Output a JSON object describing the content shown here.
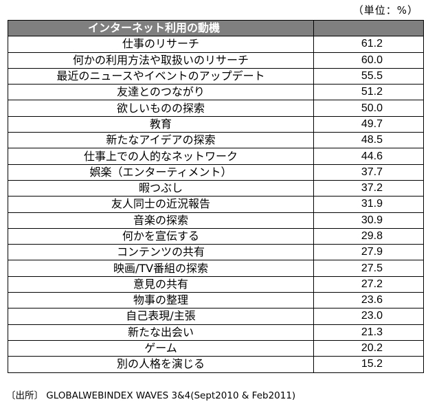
{
  "unit_note": "（単位：%）",
  "table": {
    "header_label": "インターネット利用の動機",
    "header_value": "",
    "rows": [
      {
        "label": "仕事のリサーチ",
        "value": "61.2"
      },
      {
        "label": "何かの利用方法や取扱いのリサーチ",
        "value": "60.0"
      },
      {
        "label": "最近のニュースやイベントのアップデート",
        "value": "55.5"
      },
      {
        "label": "友達とのつながり",
        "value": "51.2"
      },
      {
        "label": "欲しいものの探索",
        "value": "50.0"
      },
      {
        "label": "教育",
        "value": "49.7"
      },
      {
        "label": "新たなアイデアの探索",
        "value": "48.5"
      },
      {
        "label": "仕事上での人的なネットワーク",
        "value": "44.6"
      },
      {
        "label": "娯楽（エンターティメント）",
        "value": "37.7"
      },
      {
        "label": "暇つぶし",
        "value": "37.2"
      },
      {
        "label": "友人同士の近況報告",
        "value": "31.9"
      },
      {
        "label": "音楽の探索",
        "value": "30.9"
      },
      {
        "label": "何かを宣伝する",
        "value": "29.8"
      },
      {
        "label": "コンテンツの共有",
        "value": "27.9"
      },
      {
        "label": "映画/TV番組の探索",
        "value": "27.5"
      },
      {
        "label": "意見の共有",
        "value": "27.2"
      },
      {
        "label": "物事の整理",
        "value": "23.6"
      },
      {
        "label": "自己表現/主張",
        "value": "23.0"
      },
      {
        "label": "新たな出会い",
        "value": "21.3"
      },
      {
        "label": "ゲーム",
        "value": "20.2"
      },
      {
        "label": "別の人格を演じる",
        "value": "15.2"
      }
    ]
  },
  "source_note": "〔出所〕 GLOBALWEBINDEX WAVES 3&4(Sept2010 & Feb2011)",
  "colors": {
    "header_bg": "#7f7f7f",
    "header_text": "#ffffff",
    "border": "#000000"
  }
}
